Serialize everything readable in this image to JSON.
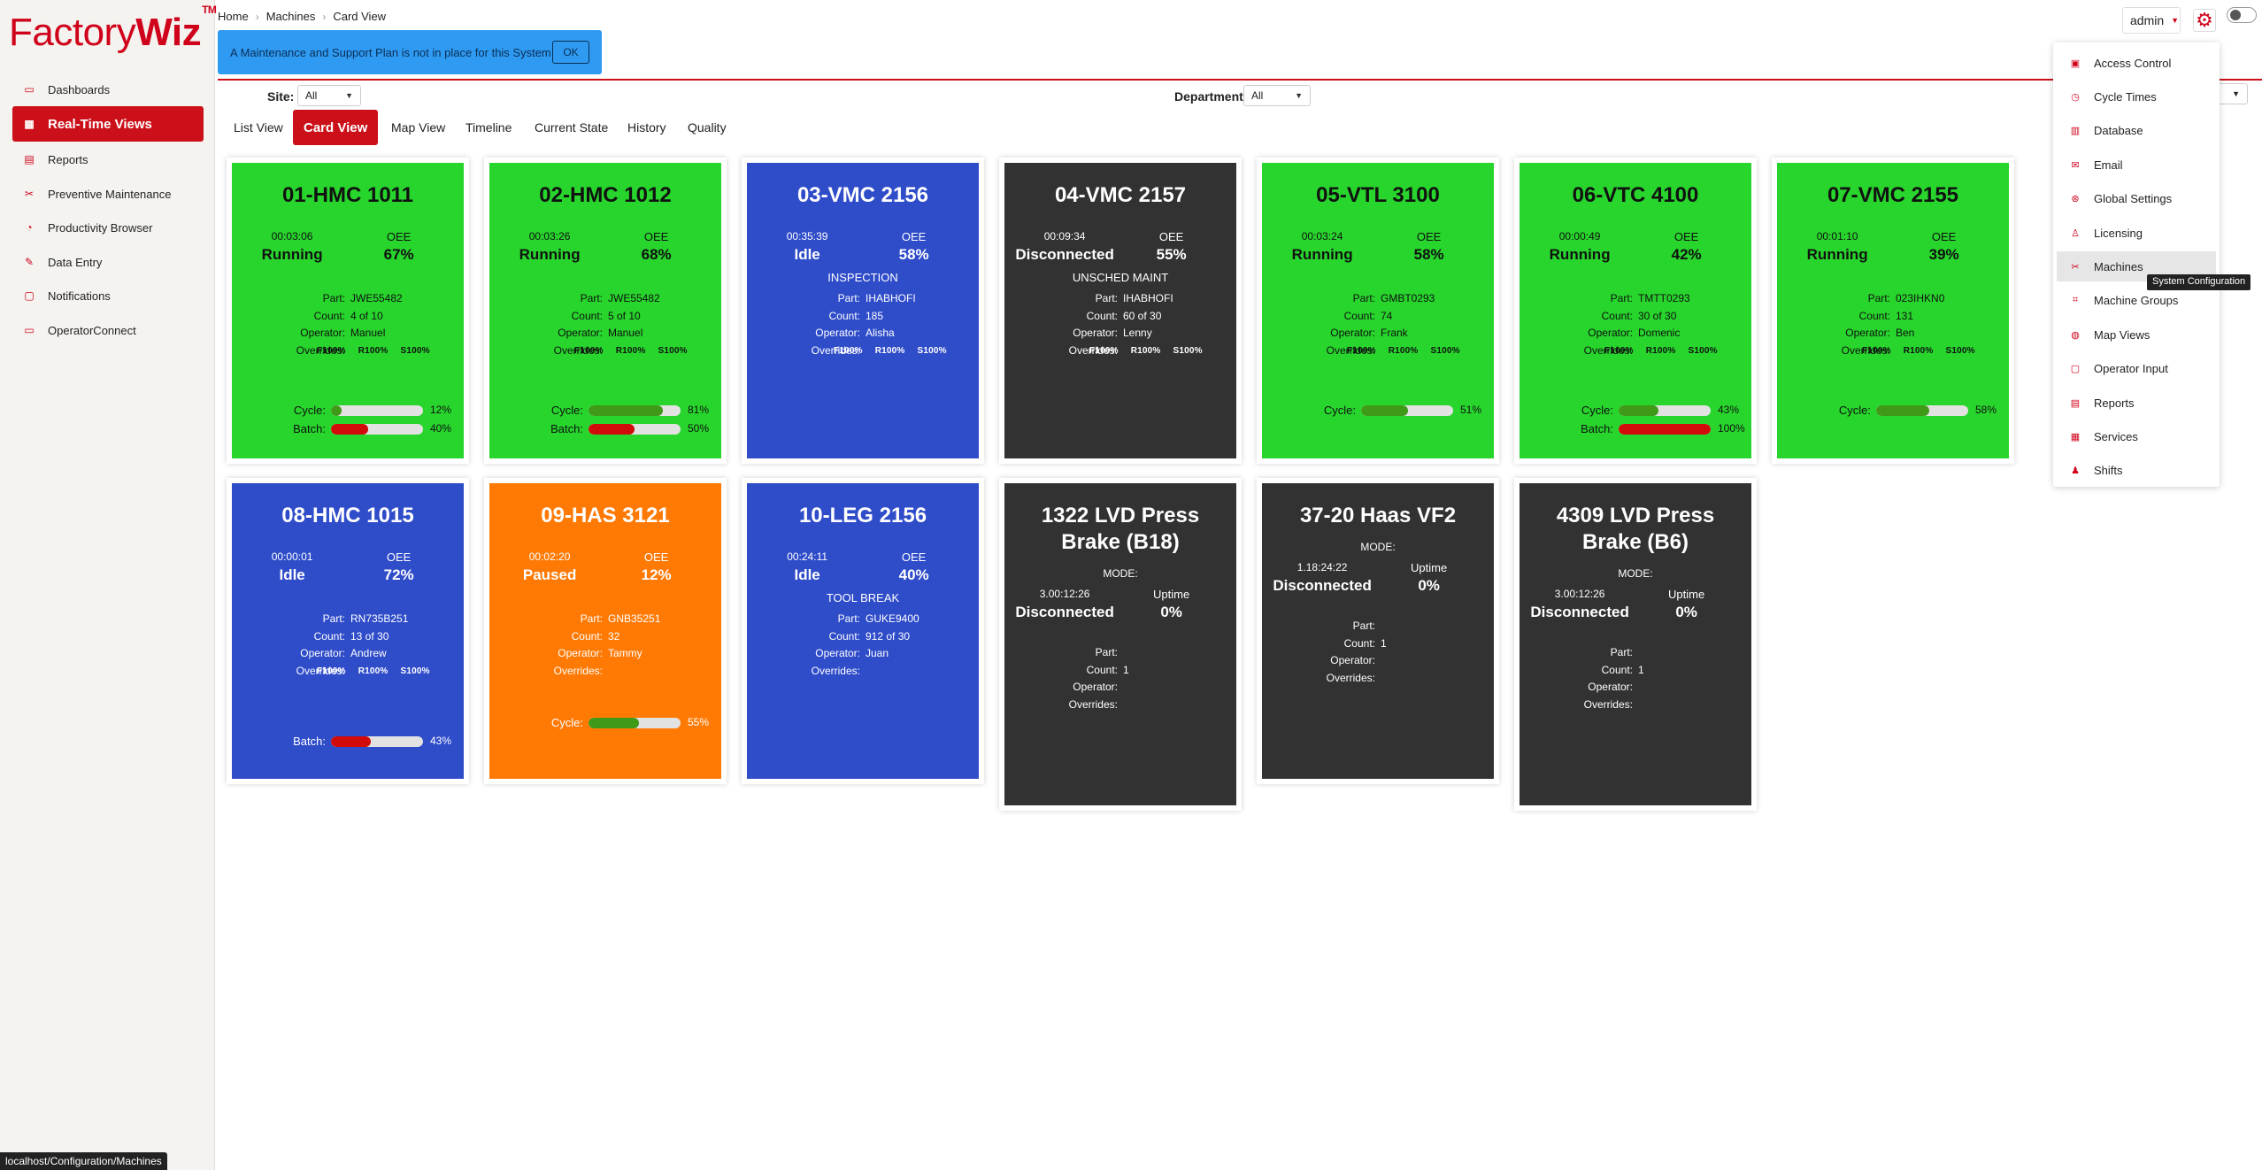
{
  "app": {
    "logo_main": "Factory",
    "logo_bold": "Wiz",
    "logo_tm": "TM"
  },
  "sidebar": {
    "items": [
      {
        "label": "Dashboards",
        "icon": "dashboard-icon",
        "active": false
      },
      {
        "label": "Real-Time Views",
        "icon": "grid-icon",
        "active": true
      },
      {
        "label": "Reports",
        "icon": "report-icon",
        "active": false
      },
      {
        "label": "Preventive Maintenance",
        "icon": "wrench-icon",
        "active": false
      },
      {
        "label": "Productivity Browser",
        "icon": "gauge-icon",
        "active": false
      },
      {
        "label": "Data Entry",
        "icon": "pencil-icon",
        "active": false
      },
      {
        "label": "Notifications",
        "icon": "bell-icon",
        "active": false
      },
      {
        "label": "OperatorConnect",
        "icon": "tablet-icon",
        "active": false
      }
    ]
  },
  "status_url": "localhost/Configuration/Machines",
  "breadcrumb": [
    "Home",
    "Machines",
    "Card View"
  ],
  "alert": {
    "text": "A Maintenance and Support Plan is not in place for this System",
    "ok_label": "OK"
  },
  "filters": {
    "site_label": "Site:",
    "site_value": "All",
    "department_label": "Department:",
    "department_value": "All"
  },
  "tabs": [
    "List View",
    "Card View",
    "Map View",
    "Timeline",
    "Current State",
    "History",
    "Quality"
  ],
  "active_tab": "Card View",
  "header": {
    "user": "admin"
  },
  "config_menu": {
    "items": [
      {
        "label": "Access Control",
        "icon": "user-lock-icon"
      },
      {
        "label": "Cycle Times",
        "icon": "clock-icon"
      },
      {
        "label": "Database",
        "icon": "database-icon"
      },
      {
        "label": "Email",
        "icon": "envelope-icon"
      },
      {
        "label": "Global Settings",
        "icon": "globe-gear-icon"
      },
      {
        "label": "Licensing",
        "icon": "certificate-icon"
      },
      {
        "label": "Machines",
        "icon": "wrench-icon"
      },
      {
        "label": "Machine Groups",
        "icon": "group-icon"
      },
      {
        "label": "Map Views",
        "icon": "globe-icon"
      },
      {
        "label": "Operator Input",
        "icon": "tablet-icon"
      },
      {
        "label": "Reports",
        "icon": "report-icon"
      },
      {
        "label": "Services",
        "icon": "windows-icon"
      },
      {
        "label": "Shifts",
        "icon": "people-icon"
      }
    ],
    "hovered": "Machines",
    "tooltip": "System Configuration"
  },
  "labels": {
    "oee": "OEE",
    "uptime": "Uptime",
    "mode": "MODE:",
    "part": "Part:",
    "count": "Count:",
    "operator": "Operator:",
    "overrides": "Overrides:",
    "cycle": "Cycle:",
    "batch": "Batch:"
  },
  "colors": {
    "running": "#27d52c",
    "idle": "#2f4cc9",
    "disconnected": "#323232",
    "paused": "#ff7a05",
    "bar_green": "#3f9a17",
    "bar_red": "#d10a0a",
    "accent": "#cc1019"
  },
  "cards": [
    {
      "title": "01-HMC 1011",
      "status": "running",
      "timer": "00:03:06",
      "state": "Running",
      "oee": "67%",
      "part": "JWE55482",
      "count": "4 of 10",
      "operator": "Manuel",
      "overrides": [
        "F100%",
        "R100%",
        "S100%"
      ],
      "cycle": "12%",
      "batch": "40%"
    },
    {
      "title": "02-HMC 1012",
      "status": "running",
      "timer": "00:03:26",
      "state": "Running",
      "oee": "68%",
      "part": "JWE55482",
      "count": "5 of 10",
      "operator": "Manuel",
      "overrides": [
        "F100%",
        "R100%",
        "S100%"
      ],
      "cycle": "81%",
      "batch": "50%"
    },
    {
      "title": "03-VMC 2156",
      "status": "idle",
      "timer": "00:35:39",
      "state": "Idle",
      "oee": "58%",
      "reason": "INSPECTION",
      "part": "IHABHOFI",
      "count": "185",
      "operator": "Alisha",
      "overrides": [
        "F100%",
        "R100%",
        "S100%"
      ]
    },
    {
      "title": "04-VMC 2157",
      "status": "disconnected",
      "timer": "00:09:34",
      "state": "Disconnected",
      "oee": "55%",
      "reason": "UNSCHED MAINT",
      "part": "IHABHOFI",
      "count": "60 of 30",
      "operator": "Lenny",
      "overrides": [
        "F100%",
        "R100%",
        "S100%"
      ]
    },
    {
      "title": "05-VTL 3100",
      "status": "running",
      "timer": "00:03:24",
      "state": "Running",
      "oee": "58%",
      "part": "GMBT0293",
      "count": "74",
      "operator": "Frank",
      "overrides": [
        "F100%",
        "R100%",
        "S100%"
      ],
      "cycle": "51%"
    },
    {
      "title": "06-VTC 4100",
      "status": "running",
      "timer": "00:00:49",
      "state": "Running",
      "oee": "42%",
      "part": "TMTT0293",
      "count": "30 of 30",
      "operator": "Domenic",
      "overrides": [
        "F100%",
        "R100%",
        "S100%"
      ],
      "cycle": "43%",
      "batch": "100%"
    },
    {
      "title": "07-VMC 2155",
      "status": "running",
      "timer": "00:01:10",
      "state": "Running",
      "oee": "39%",
      "part": "023IHKN0",
      "count": "131",
      "operator": "Ben",
      "overrides": [
        "F100%",
        "R100%",
        "S100%"
      ],
      "cycle": "58%"
    },
    {
      "title": "08-HMC 1015",
      "status": "idle",
      "timer": "00:00:01",
      "state": "Idle",
      "oee": "72%",
      "part": "RN735B251",
      "count": "13 of 30",
      "operator": "Andrew",
      "overrides": [
        "F100%",
        "R100%",
        "S100%"
      ],
      "batch": "43%"
    },
    {
      "title": "09-HAS 3121",
      "status": "paused",
      "timer": "00:02:20",
      "state": "Paused",
      "oee": "12%",
      "part": "GNB35251",
      "count": "32",
      "operator": "Tammy",
      "overrides": [],
      "cycle": "55%"
    },
    {
      "title": "10-LEG 2156",
      "status": "idle",
      "timer": "00:24:11",
      "state": "Idle",
      "oee": "40%",
      "reason": "TOOL BREAK",
      "part": "GUKE9400",
      "count": "912 of 30",
      "operator": "Juan",
      "overrides": []
    },
    {
      "title_lines": [
        "1322 LVD Press",
        "Brake (B18)"
      ],
      "status": "disconnected",
      "mode": "MODE:",
      "timer": "3.00:12:26",
      "state": "Disconnected",
      "uptime": "0%",
      "part": "",
      "count": "1",
      "operator": "",
      "overrides": []
    },
    {
      "title": "37-20 Haas VF2",
      "status": "disconnected",
      "mode": "MODE:",
      "timer": "1.18:24:22",
      "state": "Disconnected",
      "uptime": "0%",
      "part": "",
      "count": "1",
      "operator": "",
      "overrides": []
    },
    {
      "title_lines": [
        "4309 LVD Press",
        "Brake (B6)"
      ],
      "status": "disconnected",
      "mode": "MODE:",
      "timer": "3.00:12:26",
      "state": "Disconnected",
      "uptime": "0%",
      "part": "",
      "count": "1",
      "operator": "",
      "overrides": []
    }
  ]
}
